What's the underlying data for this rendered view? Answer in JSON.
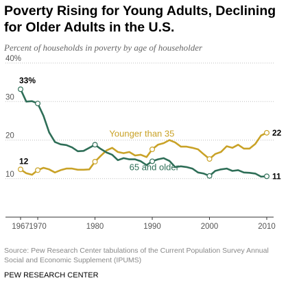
{
  "header": {
    "title": "Poverty Rising for Young Adults, Declining for Older Adults in the U.S.",
    "subtitle": "Percent of households in poverty by age of householder"
  },
  "footer": {
    "source": "Source: Pew Research Center tabulations of the Current Population Survey Annual Social and Economic Supplement (IPUMS)",
    "credit": "PEW RESEARCH CENTER"
  },
  "chart_data": {
    "type": "line",
    "title": "Poverty Rising for Young Adults, Declining for Older Adults in the U.S.",
    "subtitle": "Percent of households in poverty by age of householder",
    "xlabel": "",
    "ylabel": "",
    "xlim": [
      1967,
      2010
    ],
    "ylim": [
      0,
      40
    ],
    "x_ticks": [
      {
        "value": 1967,
        "label": "1967"
      },
      {
        "value": 1970,
        "label": "1970"
      },
      {
        "value": 1980,
        "label": "1980"
      },
      {
        "value": 1990,
        "label": "1990"
      },
      {
        "value": 2000,
        "label": "2000"
      },
      {
        "value": 2010,
        "label": "2010"
      }
    ],
    "y_ticks": [
      {
        "value": 0,
        "label": ""
      },
      {
        "value": 10,
        "label": "10"
      },
      {
        "value": 20,
        "label": "20"
      },
      {
        "value": 30,
        "label": "30"
      },
      {
        "value": 40,
        "label": "40%"
      }
    ],
    "grid": "horizontal dotted",
    "legend": "direct labels on lines",
    "series": [
      {
        "name": "Younger than 35",
        "color": "#c9a227",
        "x": [
          1967,
          1968,
          1969,
          1970,
          1971,
          1972,
          1973,
          1974,
          1975,
          1976,
          1977,
          1978,
          1979,
          1980,
          1981,
          1982,
          1983,
          1984,
          1985,
          1986,
          1987,
          1988,
          1989,
          1990,
          1991,
          1992,
          1993,
          1994,
          1995,
          1996,
          1997,
          1998,
          1999,
          2000,
          2001,
          2002,
          2003,
          2004,
          2005,
          2006,
          2007,
          2008,
          2009,
          2010
        ],
        "y": [
          12.4,
          11.4,
          11.0,
          12.2,
          12.8,
          12.4,
          11.6,
          12.2,
          12.6,
          12.6,
          12.3,
          12.3,
          12.4,
          14.4,
          15.9,
          17.3,
          18.0,
          16.9,
          16.6,
          16.9,
          16.0,
          16.2,
          15.6,
          17.6,
          18.8,
          19.2,
          20.0,
          19.4,
          18.3,
          18.3,
          18.0,
          17.6,
          16.3,
          15.1,
          16.4,
          16.9,
          18.4,
          18.0,
          18.8,
          17.8,
          17.8,
          19.0,
          21.2,
          21.9
        ],
        "end_labels": [
          {
            "x": 1967,
            "label": "12"
          },
          {
            "x": 2010,
            "label": "22"
          }
        ],
        "series_label": "Younger than 35"
      },
      {
        "name": "65 and older",
        "color": "#2e6e57",
        "x": [
          1967,
          1968,
          1969,
          1970,
          1971,
          1972,
          1973,
          1974,
          1975,
          1976,
          1977,
          1978,
          1979,
          1980,
          1981,
          1982,
          1983,
          1984,
          1985,
          1986,
          1987,
          1988,
          1989,
          1990,
          1991,
          1992,
          1993,
          1994,
          1995,
          1996,
          1997,
          1998,
          1999,
          2000,
          2001,
          2002,
          2003,
          2004,
          2005,
          2006,
          2007,
          2008,
          2009,
          2010
        ],
        "y": [
          33.2,
          30.0,
          30.1,
          29.5,
          26.3,
          22.0,
          19.5,
          18.9,
          18.7,
          18.1,
          17.1,
          17.2,
          18.0,
          18.8,
          17.7,
          16.8,
          16.2,
          14.8,
          15.3,
          15.0,
          15.0,
          14.5,
          13.5,
          14.5,
          15.0,
          15.3,
          14.6,
          13.0,
          13.2,
          13.0,
          12.6,
          11.6,
          11.3,
          10.7,
          12.0,
          12.4,
          12.6,
          12.0,
          12.2,
          11.6,
          11.5,
          11.3,
          10.5,
          10.6
        ],
        "end_labels": [
          {
            "x": 1967,
            "label": "33%"
          },
          {
            "x": 2010,
            "label": "11"
          }
        ],
        "series_label": "65 and older"
      }
    ]
  }
}
